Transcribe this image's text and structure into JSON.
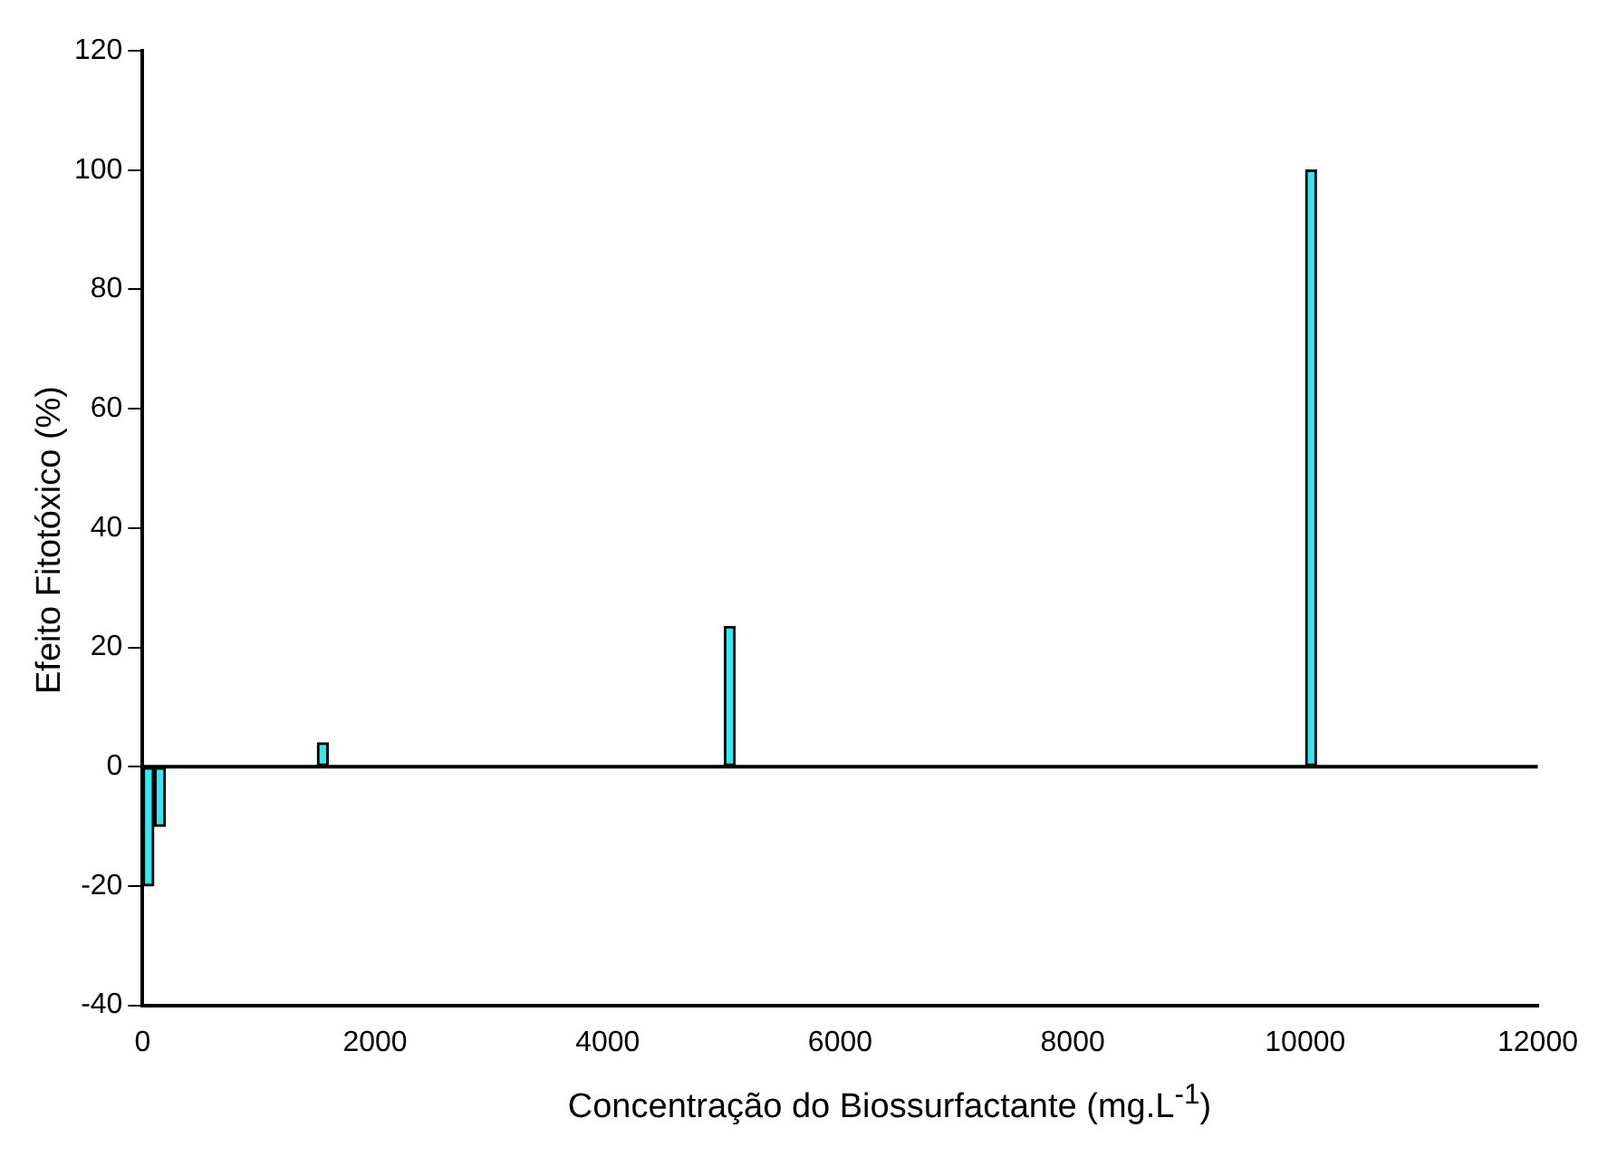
{
  "chart_data": {
    "type": "bar",
    "xlabel": "Concentração do Biossurfactante (mg.L$^{-1}$)",
    "ylabel": "Efeito Fitotóxico (%)",
    "x": [
      50,
      150,
      1550,
      5050,
      10050
    ],
    "values": [
      -20,
      -10,
      4,
      23.5,
      100
    ],
    "color": "#33e8f0",
    "xlim": [
      0,
      12000
    ],
    "xticks": [
      0,
      2000,
      4000,
      6000,
      8000,
      10000,
      12000
    ],
    "ylim": [
      -40,
      120
    ],
    "yticks": [
      -40,
      -20,
      0,
      20,
      40,
      60,
      80,
      100,
      120
    ],
    "ref_lines": [
      {
        "axis": "y",
        "value": 0,
        "color": "#000000"
      }
    ],
    "grid": false,
    "legend": false
  }
}
